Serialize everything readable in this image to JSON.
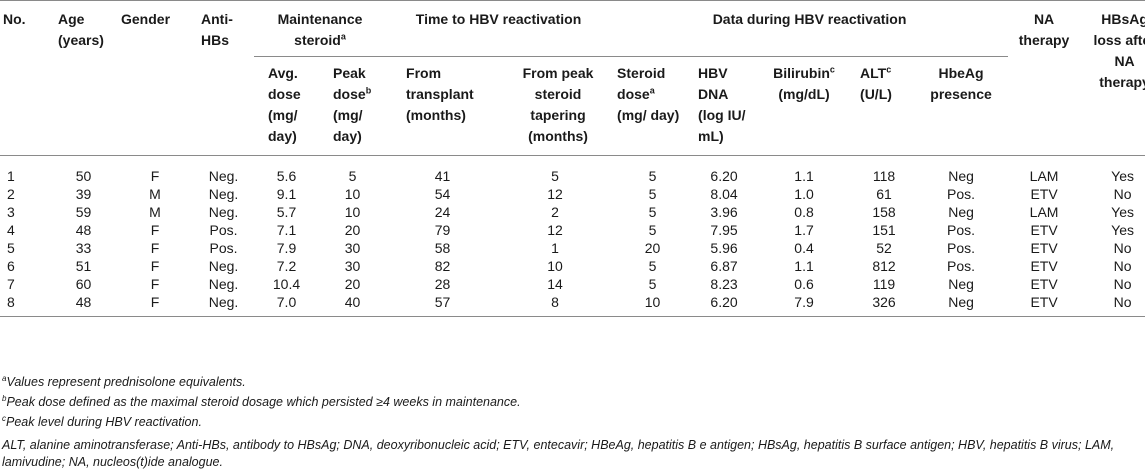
{
  "table": {
    "headers": {
      "no": "No.",
      "age": "Age (years)",
      "gender": "Gender",
      "anti_hbs": "Anti-HBs",
      "maintenance_steroid": "Maintenance steroid",
      "maintenance_steroid_sup": "a",
      "time_to_reactivation": "Time to HBV reactivation",
      "data_during_reactivation": "Data during HBV reactivation",
      "na_therapy": "NA therapy",
      "hbsag_loss": "HBsAg loss after NA therapy",
      "avg_dose": "Avg. dose (mg/ day)",
      "peak_dose_main": "Peak dose",
      "peak_dose_sup": "b",
      "peak_dose_rest": "(mg/ day)",
      "from_transplant": "From transplant (months)",
      "from_peak_tapering": "From peak steroid tapering (months)",
      "steroid_dose_main": "Steroid dose",
      "steroid_dose_sup": "a",
      "steroid_dose_rest": "(mg/ day)",
      "hbv_dna": "HBV DNA (log IU/ mL)",
      "bilirubin_main": "Bilirubin",
      "bilirubin_sup": "c",
      "bilirubin_rest": "(mg/dL)",
      "alt_main": "ALT",
      "alt_sup": "c",
      "alt_rest": "(U/L)",
      "hbeag": "HbeAg presence"
    },
    "rows": [
      [
        "1",
        "50",
        "F",
        "Neg.",
        "5.6",
        "5",
        "41",
        "5",
        "5",
        "6.20",
        "1.1",
        "118",
        "Neg",
        "LAM",
        "Yes"
      ],
      [
        "2",
        "39",
        "M",
        "Neg.",
        "9.1",
        "10",
        "54",
        "12",
        "5",
        "8.04",
        "1.0",
        "61",
        "Pos.",
        "ETV",
        "No"
      ],
      [
        "3",
        "59",
        "M",
        "Neg.",
        "5.7",
        "10",
        "24",
        "2",
        "5",
        "3.96",
        "0.8",
        "158",
        "Neg",
        "LAM",
        "Yes"
      ],
      [
        "4",
        "48",
        "F",
        "Pos.",
        "7.1",
        "20",
        "79",
        "12",
        "5",
        "7.95",
        "1.7",
        "151",
        "Pos.",
        "ETV",
        "Yes"
      ],
      [
        "5",
        "33",
        "F",
        "Pos.",
        "7.9",
        "30",
        "58",
        "1",
        "20",
        "5.96",
        "0.4",
        "52",
        "Pos.",
        "ETV",
        "No"
      ],
      [
        "6",
        "51",
        "F",
        "Neg.",
        "7.2",
        "30",
        "82",
        "10",
        "5",
        "6.87",
        "1.1",
        "812",
        "Pos.",
        "ETV",
        "No"
      ],
      [
        "7",
        "60",
        "F",
        "Neg.",
        "10.4",
        "20",
        "28",
        "14",
        "5",
        "8.23",
        "0.6",
        "119",
        "Neg",
        "ETV",
        "No"
      ],
      [
        "8",
        "48",
        "F",
        "Neg.",
        "7.0",
        "40",
        "57",
        "8",
        "10",
        "6.20",
        "7.9",
        "326",
        "Neg",
        "ETV",
        "No"
      ]
    ]
  },
  "footnotes": [
    {
      "mark": "a",
      "text": "Values represent prednisolone equivalents."
    },
    {
      "mark": "b",
      "text": "Peak dose defined as the maximal steroid dosage which persisted ≥4 weeks in maintenance."
    },
    {
      "mark": "c",
      "text": "Peak level during HBV reactivation."
    }
  ],
  "abbreviations": "ALT, alanine aminotransferase; Anti-HBs, antibody to HBsAg; DNA, deoxyribonucleic acid; ETV, entecavir; HBeAg, hepatitis B e antigen; HBsAg, hepatitis B surface antigen; HBV, hepatitis B virus; LAM, lamivudine; NA, nucleos(t)ide analogue."
}
